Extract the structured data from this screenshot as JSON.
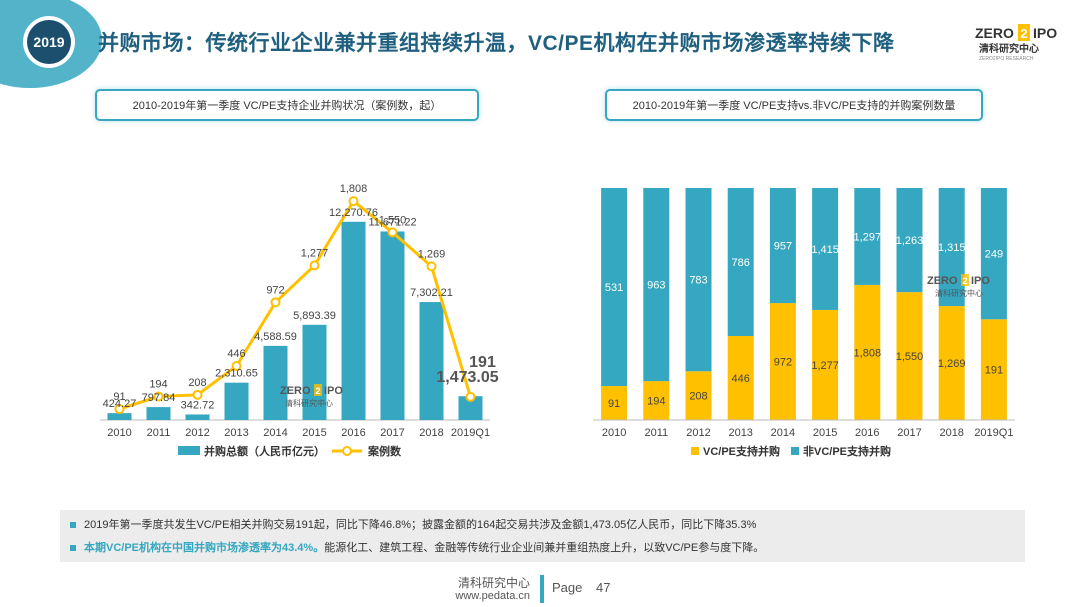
{
  "badge": {
    "year": "2019"
  },
  "title": "并购市场：传统行业企业兼并重组持续升温，VC/PE机构在并购市场渗透率持续下降",
  "logo": {
    "brand_left": "ZERO",
    "brand_mark": "2",
    "brand_right": "IPO",
    "sub": "清科研究中心",
    "tag": "ZERO2IPO RESEARCH"
  },
  "watermark": {
    "brand_left": "ZERO",
    "brand_mark": "2",
    "brand_right": "IPO",
    "sub": "清科研究中心"
  },
  "colors": {
    "teal": "#35a7c0",
    "yellow": "#ffc000",
    "title": "#1f5f7f"
  },
  "left_caption": "2010-2019年第一季度 VC/PE支持企业并购状况（案例数，起）",
  "right_caption": "2010-2019年第一季度 VC/PE支持vs.非VC/PE支持的并购案例数量",
  "chart_data": [
    {
      "type": "bar",
      "categories": [
        "2010",
        "2011",
        "2012",
        "2013",
        "2014",
        "2015",
        "2016",
        "2017",
        "2018",
        "2019Q1"
      ],
      "series": [
        {
          "name": "并购总额（人民币亿元）",
          "kind": "bar",
          "values": [
            424.27,
            797.84,
            342.72,
            2310.65,
            4588.59,
            5893.39,
            12270.76,
            11671.22,
            7302.21,
            1473.05
          ],
          "labels": [
            "424.27",
            "797.84",
            "342.72",
            "2,310.65",
            "4,588.59",
            "5,893.39",
            "12,270.76",
            "11,671.22",
            "7,302.21",
            "1,473.05"
          ]
        },
        {
          "name": "案例数",
          "kind": "line",
          "values": [
            91,
            194,
            208,
            446,
            972,
            1277,
            1808,
            1550,
            1269,
            191
          ],
          "labels": [
            "91",
            "194",
            "208",
            "446",
            "972",
            "1,277",
            "1,808",
            "1,550",
            "1,269",
            "191"
          ]
        }
      ],
      "legend_placement": "bottom",
      "grid": false
    },
    {
      "type": "bar",
      "stacked": "percent",
      "categories": [
        "2010",
        "2011",
        "2012",
        "2013",
        "2014",
        "2015",
        "2016",
        "2017",
        "2018",
        "2019Q1"
      ],
      "series": [
        {
          "name": "VC/PE支持并购",
          "values": [
            91,
            194,
            208,
            446,
            972,
            1277,
            1808,
            1550,
            1269,
            191
          ],
          "labels": [
            "91",
            "194",
            "208",
            "446",
            "972",
            "1,277",
            "1,808",
            "1,550",
            "1,269",
            "191"
          ]
        },
        {
          "name": "非VC/PE支持并购",
          "values": [
            531,
            963,
            783,
            786,
            957,
            1415,
            1297,
            1263,
            1315,
            249
          ],
          "labels": [
            "531",
            "963",
            "783",
            "786",
            "957",
            "1,415",
            "1,297",
            "1,263",
            "1,315",
            "249"
          ]
        }
      ],
      "legend_placement": "bottom",
      "grid": false
    }
  ],
  "notes": {
    "note1": "2019年第一季度共发生VC/PE相关并购交易191起，同比下降46.8%；披露金额的164起交易共涉及金额1,473.05亿人民币，同比下降35.3%",
    "note2_highlight": "本期VC/PE机构在中国并购市场渗透率为43.4%。",
    "note2_rest": "能源化工、建筑工程、金融等传统行业企业间兼并重组热度上升，以致VC/PE参与度下降。"
  },
  "footer": {
    "org": "清科研究中心",
    "url": "www.pedata.cn",
    "page_label": "Page",
    "page_number": "47"
  }
}
